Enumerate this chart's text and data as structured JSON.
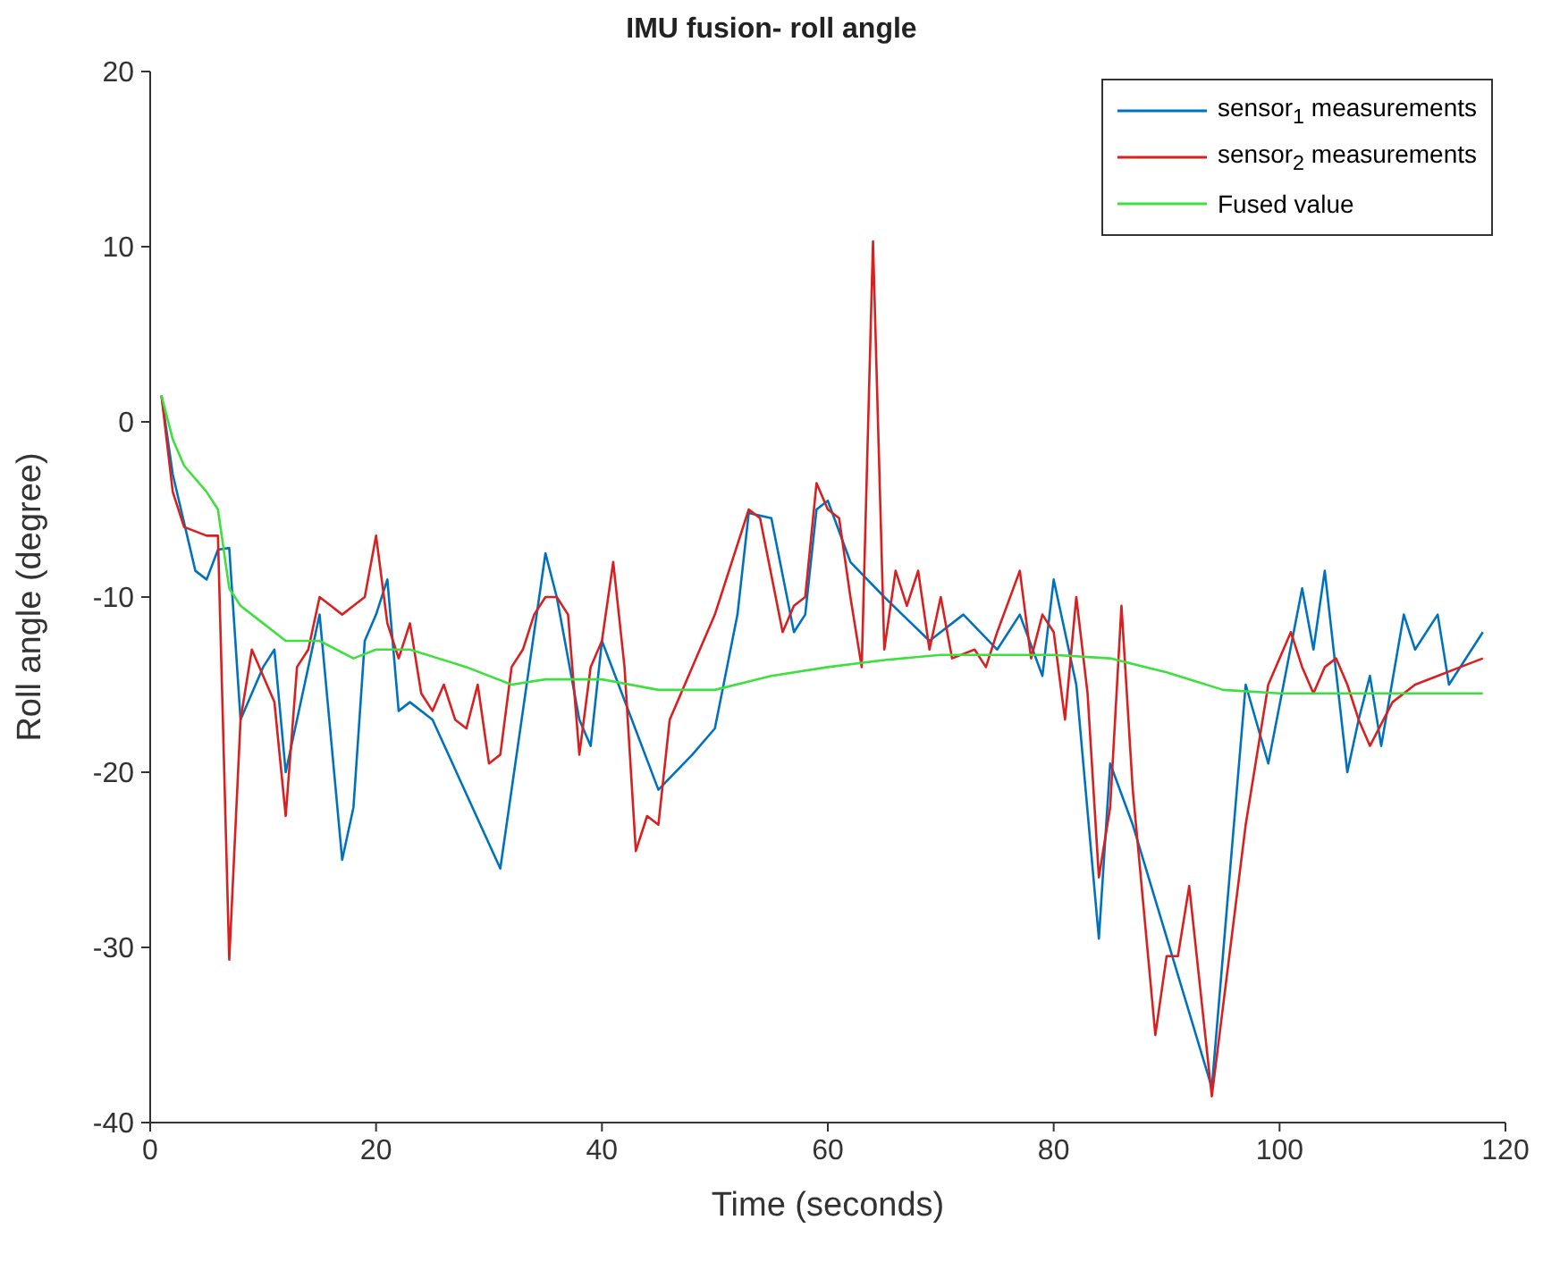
{
  "chart_data": {
    "type": "line",
    "title": "IMU fusion- roll angle",
    "xlabel": "Time (seconds)",
    "ylabel": "Roll angle (degree)",
    "xlim": [
      0,
      120
    ],
    "xticks": [
      0,
      20,
      40,
      60,
      80,
      100,
      120
    ],
    "ylim": [
      -40,
      20
    ],
    "yticks": [
      -40,
      -30,
      -20,
      -10,
      0,
      10,
      20
    ],
    "grid": false,
    "legend": "top right",
    "marker": "none",
    "line_style": "solid",
    "series": [
      {
        "name": "sensor$_{1}$ measurements",
        "color": "#0072bd",
        "x": [
          1,
          2,
          4,
          5,
          6,
          7,
          8,
          10,
          11,
          12,
          14,
          15,
          17,
          18,
          19,
          20,
          21,
          22,
          23,
          25,
          31,
          35,
          36,
          38,
          39,
          40,
          45,
          48,
          50,
          52,
          53,
          55,
          57,
          58,
          59,
          60,
          62,
          65,
          69,
          72,
          75,
          77,
          79,
          80,
          82,
          84,
          85,
          87,
          94,
          97,
          99,
          102,
          103,
          104,
          106,
          107,
          108,
          109,
          111,
          112,
          114,
          115,
          118
        ],
        "values": [
          1.5,
          -3,
          -8.5,
          -9,
          -7.3,
          -7.2,
          -17,
          -14,
          -13,
          -20,
          -14,
          -11,
          -25,
          -22,
          -12.5,
          -11,
          -9,
          -16.5,
          -16,
          -17,
          -25.5,
          -7.5,
          -10,
          -17,
          -18.5,
          -12.5,
          -21,
          -19,
          -17.5,
          -11,
          -5.2,
          -5.5,
          -12,
          -11,
          -5,
          -4.5,
          -8,
          -10,
          -12.5,
          -11,
          -13,
          -11,
          -14.5,
          -9,
          -15,
          -29.5,
          -19.5,
          -23,
          -38,
          -15,
          -19.5,
          -9.5,
          -13,
          -8.5,
          -20,
          -17,
          -14.5,
          -18.5,
          -11,
          -13,
          -11,
          -15,
          -12
        ]
      },
      {
        "name": "sensor$_{2}$ measurements",
        "color": "#d92020",
        "x": [
          1,
          2,
          3,
          5,
          6,
          7,
          8,
          9,
          11,
          12,
          13,
          14,
          15,
          16,
          17,
          18,
          19,
          20,
          21,
          22,
          23,
          24,
          25,
          26,
          27,
          28,
          29,
          30,
          31,
          32,
          33,
          34,
          35,
          36,
          37,
          38,
          39,
          40,
          41,
          42,
          43,
          44,
          45,
          46,
          50,
          53,
          54,
          56,
          57,
          58,
          59,
          60,
          61,
          62,
          63,
          64,
          65,
          66,
          67,
          68,
          69,
          70,
          71,
          73,
          74,
          75,
          77,
          78,
          79,
          80,
          81,
          82,
          83,
          84,
          85,
          86,
          87,
          89,
          90,
          91,
          92,
          94,
          97,
          99,
          101,
          102,
          103,
          104,
          105,
          106,
          107,
          108,
          110,
          112,
          114,
          116,
          118
        ],
        "values": [
          1.5,
          -4,
          -6,
          -6.5,
          -6.5,
          -30.7,
          -17,
          -13,
          -16,
          -22.5,
          -14,
          -13,
          -10,
          -10.5,
          -11,
          -10.5,
          -10,
          -6.5,
          -11.5,
          -13.5,
          -11.5,
          -15.5,
          -16.5,
          -15,
          -17,
          -17.5,
          -15,
          -19.5,
          -19,
          -14,
          -13,
          -11,
          -10,
          -10,
          -11,
          -19,
          -14,
          -12.5,
          -8,
          -14,
          -24.5,
          -22.5,
          -23,
          -17,
          -11,
          -5,
          -5.5,
          -12,
          -10.5,
          -10,
          -3.5,
          -5,
          -5.5,
          -10,
          -14,
          10.3,
          -13,
          -8.5,
          -10.5,
          -8.5,
          -13,
          -10,
          -13.5,
          -13,
          -14,
          -12,
          -8.5,
          -13.5,
          -11,
          -12,
          -17,
          -10,
          -15.5,
          -26,
          -22,
          -10.5,
          -21,
          -35,
          -30.5,
          -30.5,
          -26.5,
          -38.5,
          -23,
          -15,
          -12,
          -14,
          -15.5,
          -14,
          -13.5,
          -15,
          -17,
          -18.5,
          -16,
          -15,
          -14.5,
          -14,
          -13.5
        ]
      },
      {
        "name": "Fused value",
        "color": "#3ee03e",
        "x": [
          1,
          2,
          3,
          5,
          6,
          7,
          8,
          10,
          12,
          15,
          18,
          20,
          23,
          28,
          32,
          35,
          40,
          45,
          50,
          55,
          60,
          65,
          70,
          75,
          80,
          85,
          90,
          95,
          100,
          110,
          118
        ],
        "values": [
          1.5,
          -1,
          -2.5,
          -4,
          -5,
          -9.5,
          -10.5,
          -11.5,
          -12.5,
          -12.5,
          -13.5,
          -13,
          -13,
          -14,
          -15,
          -14.7,
          -14.7,
          -15.3,
          -15.3,
          -14.5,
          -14,
          -13.6,
          -13.3,
          -13.3,
          -13.3,
          -13.5,
          -14.3,
          -15.3,
          -15.5,
          -15.5,
          -15.5
        ]
      }
    ]
  }
}
